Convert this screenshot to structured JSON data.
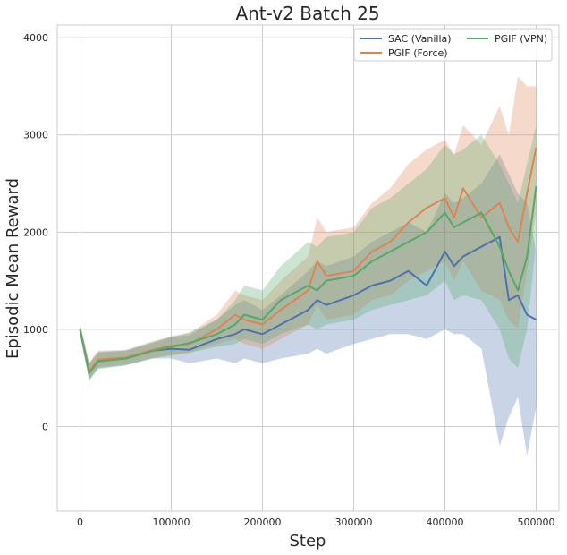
{
  "chart_data": {
    "type": "line",
    "title": "Ant-v2 Batch 25",
    "xlabel": "Step",
    "ylabel": "Episodic Mean Reward",
    "xlim": [
      -25000,
      525000
    ],
    "ylim": [
      -870,
      4130
    ],
    "xticks": [
      0,
      100000,
      200000,
      300000,
      400000,
      500000
    ],
    "xtick_labels": [
      "0",
      "100000",
      "200000",
      "300000",
      "400000",
      "500000"
    ],
    "yticks": [
      0,
      1000,
      2000,
      3000,
      4000
    ],
    "ytick_labels": [
      "0",
      "1000",
      "2000",
      "3000",
      "4000"
    ],
    "grid": true,
    "legend": {
      "placement": "top-right",
      "columns": 2
    },
    "x": [
      0,
      10000,
      20000,
      50000,
      80000,
      100000,
      120000,
      150000,
      170000,
      180000,
      200000,
      220000,
      250000,
      260000,
      270000,
      300000,
      320000,
      340000,
      360000,
      380000,
      400000,
      410000,
      420000,
      440000,
      460000,
      470000,
      480000,
      490000,
      500000
    ],
    "series": [
      {
        "name": "SAC (Vanilla)",
        "color": "#4c72b0",
        "values": [
          1000,
          560,
          680,
          700,
          780,
          800,
          790,
          900,
          950,
          1000,
          950,
          1050,
          1200,
          1300,
          1250,
          1350,
          1450,
          1500,
          1600,
          1450,
          1800,
          1650,
          1750,
          1850,
          1950,
          1300,
          1350,
          1150,
          1100
        ],
        "band_lower": [
          950,
          480,
          600,
          630,
          700,
          700,
          650,
          700,
          650,
          700,
          650,
          700,
          750,
          800,
          750,
          850,
          900,
          950,
          950,
          900,
          1000,
          950,
          950,
          800,
          -200,
          100,
          300,
          -300,
          200
        ],
        "band_upper": [
          1050,
          650,
          770,
          780,
          860,
          920,
          940,
          1100,
          1250,
          1300,
          1200,
          1350,
          1600,
          1700,
          1650,
          1750,
          1900,
          2000,
          2100,
          2000,
          2400,
          2300,
          2350,
          2500,
          2800,
          2600,
          2400,
          2300,
          1800
        ]
      },
      {
        "name": "PGIF (Force)",
        "color": "#dd8452",
        "values": [
          1000,
          570,
          690,
          710,
          790,
          830,
          850,
          1000,
          1150,
          1100,
          1050,
          1200,
          1400,
          1700,
          1550,
          1600,
          1800,
          1900,
          2100,
          2250,
          2350,
          2150,
          2450,
          2150,
          2300,
          2050,
          1900,
          2400,
          2870
        ],
        "band_lower": [
          950,
          490,
          610,
          640,
          710,
          740,
          760,
          850,
          900,
          850,
          800,
          900,
          1050,
          1250,
          1100,
          1150,
          1300,
          1350,
          1500,
          1600,
          1700,
          1500,
          1700,
          1400,
          1300,
          1100,
          1000,
          1600,
          2200
        ],
        "band_upper": [
          1050,
          660,
          780,
          790,
          880,
          930,
          960,
          1150,
          1400,
          1350,
          1300,
          1500,
          1750,
          2150,
          2000,
          2050,
          2300,
          2450,
          2700,
          2850,
          2950,
          2800,
          3100,
          2900,
          3300,
          3000,
          3600,
          3500,
          3500
        ]
      },
      {
        "name": "PGIF (VPN)",
        "color": "#55a868",
        "values": [
          1000,
          550,
          670,
          700,
          780,
          820,
          860,
          950,
          1050,
          1150,
          1100,
          1300,
          1450,
          1400,
          1500,
          1550,
          1700,
          1800,
          1900,
          2000,
          2200,
          2050,
          2100,
          2200,
          1850,
          1600,
          1400,
          1750,
          2470
        ],
        "band_lower": [
          950,
          470,
          590,
          630,
          700,
          730,
          760,
          820,
          850,
          900,
          850,
          950,
          1050,
          1000,
          1050,
          1100,
          1200,
          1250,
          1300,
          1350,
          1500,
          1300,
          1350,
          1300,
          1000,
          700,
          600,
          1000,
          1900
        ],
        "band_upper": [
          1050,
          640,
          760,
          780,
          870,
          920,
          970,
          1100,
          1300,
          1450,
          1400,
          1650,
          1900,
          1850,
          1950,
          2000,
          2250,
          2350,
          2500,
          2650,
          2900,
          2800,
          2850,
          3000,
          2700,
          2500,
          2300,
          2700,
          3100
        ]
      }
    ]
  }
}
